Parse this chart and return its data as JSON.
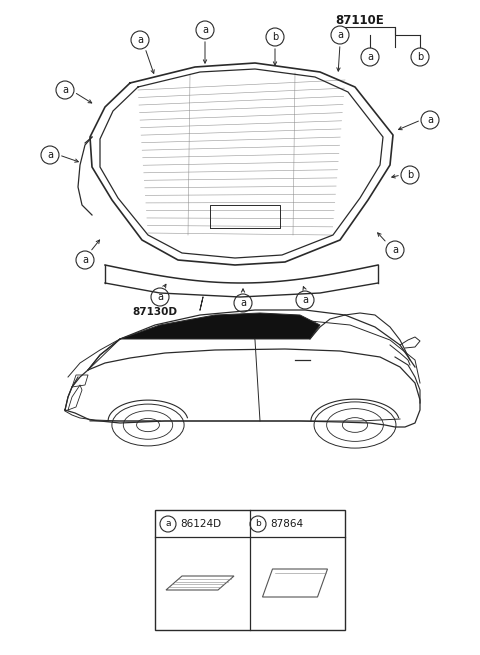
{
  "title": "87110E",
  "label_87130D": "87130D",
  "part_a_code": "86124D",
  "part_b_code": "87864",
  "bg_color": "#ffffff",
  "line_color": "#2a2a2a",
  "text_color": "#1a1a1a",
  "gray_line": "#888888",
  "light_gray": "#bbbbbb"
}
